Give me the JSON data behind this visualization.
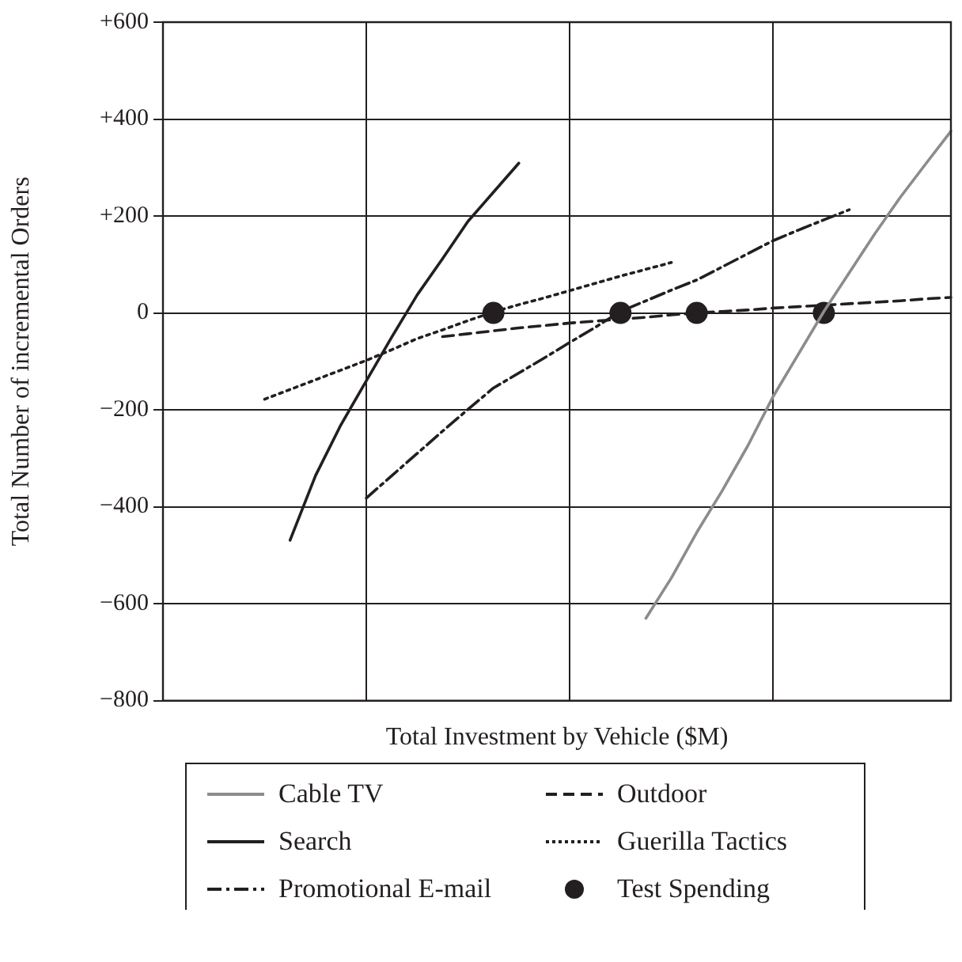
{
  "chart_data": {
    "type": "line",
    "xlabel": "Total Investment by Vehicle ($M)",
    "ylabel": "Total Number of incremental Orders",
    "categories": [
      null,
      null,
      null,
      null,
      null,
      null,
      null,
      null,
      null,
      null,
      null,
      null,
      null,
      null,
      null,
      null,
      null,
      null,
      null,
      null,
      null,
      null,
      null,
      null,
      null,
      null,
      null,
      null,
      null,
      null,
      null,
      null
    ],
    "series": [
      {
        "name": "Cable TV",
        "color": "#8c8c8c",
        "line_style": "solid",
        "values": [
          null,
          null,
          null,
          null,
          null,
          null,
          null,
          null,
          null,
          null,
          null,
          null,
          null,
          null,
          null,
          null,
          null,
          null,
          null,
          -630,
          -547,
          -453,
          -367,
          -275,
          -173,
          -85,
          3,
          83,
          163,
          238,
          307,
          375
        ]
      },
      {
        "name": "Outdoor",
        "color": "#231f20",
        "line_style": "dashed",
        "values": [
          null,
          null,
          null,
          null,
          null,
          null,
          null,
          null,
          null,
          null,
          null,
          -49,
          -43,
          -37,
          -31,
          -26,
          -21,
          -17,
          -13,
          -9,
          -4,
          0,
          3,
          6,
          10,
          13,
          16,
          19,
          22,
          25,
          29,
          32
        ]
      },
      {
        "name": "Search",
        "color": "#231f20",
        "line_style": "solid",
        "values": [
          null,
          null,
          null,
          null,
          null,
          -469,
          -336,
          -231,
          -140,
          -50,
          37,
          112,
          189,
          249,
          309,
          null,
          null,
          null,
          null,
          null,
          null,
          null,
          null,
          null,
          null,
          null,
          null,
          null,
          null,
          null,
          null,
          null
        ]
      },
      {
        "name": "Guerilla Tactics",
        "color": "#231f20",
        "line_style": "dotted",
        "values": [
          null,
          null,
          null,
          null,
          -178,
          -158,
          -138,
          -118,
          -98,
          -76,
          -53,
          -35,
          -16,
          2,
          17,
          31,
          46,
          61,
          76,
          90,
          104,
          null,
          null,
          null,
          null,
          null,
          null,
          null,
          null,
          null,
          null,
          null
        ]
      },
      {
        "name": "Promotional E-mail",
        "color": "#231f20",
        "line_style": "dashdot",
        "values": [
          null,
          null,
          null,
          null,
          null,
          null,
          null,
          null,
          -382,
          -336,
          -290,
          -244,
          -199,
          -155,
          -124,
          -93,
          -61,
          -30,
          3,
          25,
          47,
          68,
          95,
          122,
          149,
          171,
          192,
          213,
          null,
          null,
          null,
          null
        ]
      },
      {
        "name": "Test Spending",
        "type": "scatter",
        "color": "#231f20",
        "marker": "circle",
        "values": [
          null,
          null,
          null,
          null,
          null,
          null,
          null,
          null,
          null,
          null,
          null,
          null,
          null,
          0,
          null,
          null,
          null,
          null,
          0,
          null,
          null,
          0,
          null,
          null,
          null,
          null,
          0,
          null,
          null,
          null,
          null,
          null
        ]
      }
    ],
    "ylim": [
      -800,
      600
    ],
    "yticks": [
      {
        "value": -800,
        "label": "−800"
      },
      {
        "value": -600,
        "label": "−600"
      },
      {
        "value": -400,
        "label": "−400"
      },
      {
        "value": -200,
        "label": "−200"
      },
      0,
      {
        "value": 200,
        "label": "+200"
      },
      {
        "value": 400,
        "label": "+400"
      },
      {
        "value": 600,
        "label": "+600"
      }
    ],
    "grid": true,
    "legend": "bottom",
    "tick_labels": "y"
  }
}
